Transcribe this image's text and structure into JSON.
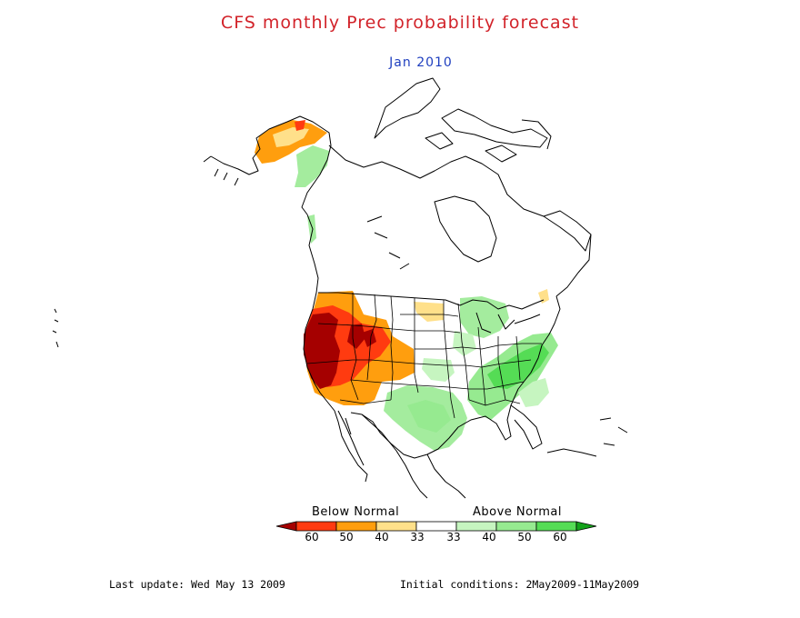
{
  "title": "CFS monthly Prec probability forecast",
  "subtitle": "Jan 2010",
  "legend": {
    "below_label": "Below Normal",
    "above_label": "Above Normal",
    "ticks": [
      "60",
      "50",
      "40",
      "33",
      "33",
      "40",
      "50",
      "60"
    ],
    "colors": [
      "#a50000",
      "#ff3b10",
      "#ff9e0e",
      "#ffe08a",
      "#ffffff",
      "#c6f5c0",
      "#96ea90",
      "#55dc55",
      "#13a21a"
    ]
  },
  "footer": {
    "last_update": "Last update: Wed May 13 2009",
    "initial_conditions": "Initial conditions: 2May2009-11May2009"
  },
  "chart_data": {
    "type": "heatmap",
    "variable": "Precipitation",
    "categories": [
      "Below Normal",
      "Above Normal"
    ],
    "probability_bins_percent": [
      60,
      50,
      40,
      33,
      33,
      40,
      50,
      60
    ],
    "regions": [
      {
        "area": "California / Great Basin coast",
        "category": "Below Normal",
        "probability": ">60"
      },
      {
        "area": "Nevada / Utah / Idaho",
        "category": "Below Normal",
        "probability": "50-60"
      },
      {
        "area": "Oregon / Wyoming / Colorado / Arizona",
        "category": "Below Normal",
        "probability": "40-50"
      },
      {
        "area": "Northern Alaska",
        "category": "Below Normal",
        "probability": "40-50"
      },
      {
        "area": "Texas / Southern Plains",
        "category": "Above Normal",
        "probability": "33-40"
      },
      {
        "area": "Ohio Valley / Appalachians",
        "category": "Above Normal",
        "probability": "40-50"
      },
      {
        "area": "Great Lakes",
        "category": "Above Normal",
        "probability": "33-40"
      },
      {
        "area": "Western Alaska",
        "category": "Above Normal",
        "probability": "33-40"
      }
    ]
  }
}
